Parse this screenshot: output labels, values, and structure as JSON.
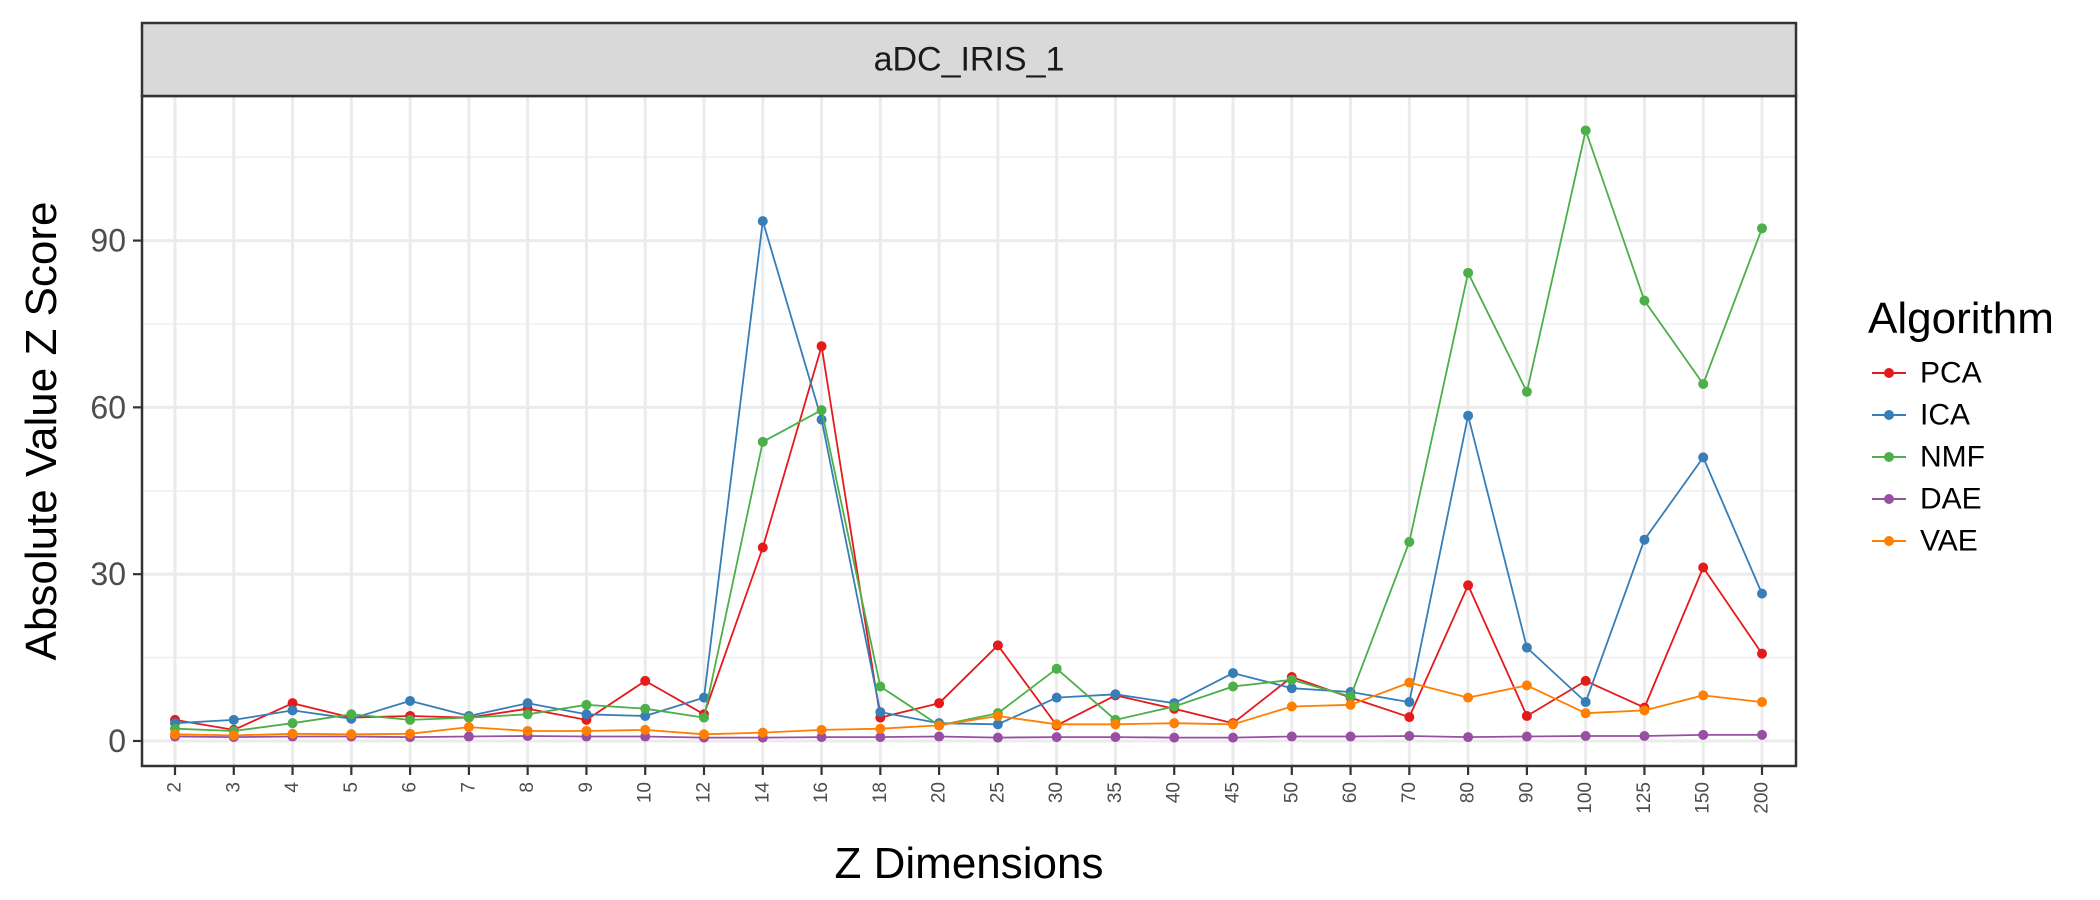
{
  "chart_data": {
    "type": "line",
    "title": "",
    "facet_label": "aDC_IRIS_1",
    "xlabel": "Z Dimensions",
    "ylabel": "Absolute Value Z Score",
    "categories": [
      "2",
      "3",
      "4",
      "5",
      "6",
      "7",
      "8",
      "9",
      "10",
      "12",
      "14",
      "16",
      "18",
      "20",
      "25",
      "30",
      "35",
      "40",
      "45",
      "50",
      "60",
      "70",
      "80",
      "90",
      "100",
      "125",
      "150",
      "200"
    ],
    "ylim": [
      -4.5,
      116
    ],
    "yticks": [
      0,
      30,
      60,
      90
    ],
    "grid": true,
    "legend": {
      "title": "Algorithm",
      "position": "right"
    },
    "series": [
      {
        "name": "PCA",
        "color": "#E41A1C",
        "values": [
          3.8,
          2.0,
          6.8,
          4.2,
          4.5,
          4.2,
          5.8,
          3.8,
          10.8,
          4.8,
          34.8,
          71.0,
          4.2,
          6.8,
          17.2,
          2.8,
          8.2,
          5.8,
          3.2,
          11.5,
          7.8,
          4.3,
          28.0,
          4.5,
          10.8,
          6.0,
          31.2,
          15.7
        ]
      },
      {
        "name": "ICA",
        "color": "#377EB8",
        "values": [
          3.2,
          3.8,
          5.5,
          4.0,
          7.2,
          4.5,
          6.8,
          4.8,
          4.5,
          7.8,
          93.5,
          57.8,
          5.2,
          3.2,
          3.0,
          7.8,
          8.4,
          6.8,
          12.2,
          9.5,
          8.8,
          7.0,
          58.5,
          16.8,
          7.0,
          36.2,
          51.0,
          26.5
        ]
      },
      {
        "name": "NMF",
        "color": "#4DAF4A",
        "values": [
          2.2,
          1.8,
          3.2,
          4.8,
          3.8,
          4.2,
          4.8,
          6.5,
          5.8,
          4.2,
          53.8,
          59.5,
          9.8,
          2.8,
          5.0,
          13.0,
          3.8,
          6.2,
          9.8,
          11.0,
          8.0,
          35.8,
          84.2,
          62.8,
          109.8,
          79.2,
          64.2,
          92.2
        ]
      },
      {
        "name": "DAE",
        "color": "#984EA3",
        "values": [
          0.8,
          0.7,
          0.8,
          0.8,
          0.7,
          0.8,
          0.9,
          0.8,
          0.8,
          0.6,
          0.6,
          0.7,
          0.7,
          0.8,
          0.6,
          0.7,
          0.7,
          0.6,
          0.6,
          0.8,
          0.8,
          0.9,
          0.7,
          0.8,
          0.9,
          0.9,
          1.1,
          1.1
        ]
      },
      {
        "name": "VAE",
        "color": "#FF7F00",
        "values": [
          1.2,
          1.0,
          1.3,
          1.2,
          1.3,
          2.5,
          1.8,
          1.8,
          2.0,
          1.2,
          1.5,
          2.0,
          2.2,
          2.8,
          4.5,
          3.0,
          3.0,
          3.2,
          3.0,
          6.2,
          6.5,
          10.5,
          7.8,
          10.0,
          5.0,
          5.5,
          8.2,
          7.0
        ]
      }
    ]
  }
}
